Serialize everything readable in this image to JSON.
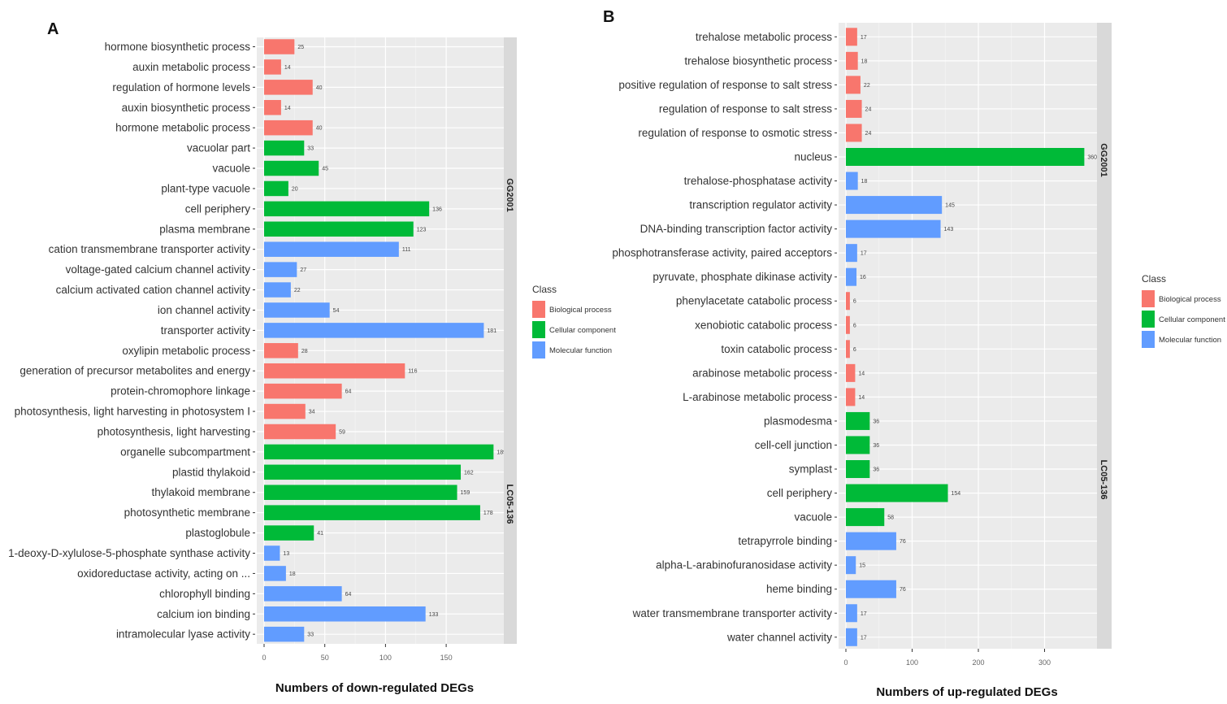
{
  "chart_data": [
    {
      "panel": "A",
      "type": "bar",
      "orientation": "horizontal",
      "xlabel": "Numbers of down-regulated DEGs",
      "xticks": [
        0,
        50,
        100,
        150
      ],
      "xlim": [
        0,
        195
      ],
      "legend_title": "Class",
      "legend": [
        {
          "name": "Biological process",
          "color": "#f8766d"
        },
        {
          "name": "Cellular component",
          "color": "#00ba38"
        },
        {
          "name": "Molecular function",
          "color": "#619cff"
        }
      ],
      "facets": [
        {
          "label": "GG2001",
          "bars": [
            {
              "label": "hormone biosynthetic process",
              "value": 25,
              "class": "Biological process"
            },
            {
              "label": "auxin metabolic process",
              "value": 14,
              "class": "Biological process"
            },
            {
              "label": "regulation of hormone levels",
              "value": 40,
              "class": "Biological process"
            },
            {
              "label": "auxin biosynthetic process",
              "value": 14,
              "class": "Biological process"
            },
            {
              "label": "hormone metabolic process",
              "value": 40,
              "class": "Biological process"
            },
            {
              "label": "vacuolar part",
              "value": 33,
              "class": "Cellular component"
            },
            {
              "label": "vacuole",
              "value": 45,
              "class": "Cellular component"
            },
            {
              "label": "plant-type vacuole",
              "value": 20,
              "class": "Cellular component"
            },
            {
              "label": "cell periphery",
              "value": 136,
              "class": "Cellular component"
            },
            {
              "label": "plasma membrane",
              "value": 123,
              "class": "Cellular component"
            },
            {
              "label": "cation transmembrane transporter activity",
              "value": 111,
              "class": "Molecular function"
            },
            {
              "label": "voltage-gated calcium channel activity",
              "value": 27,
              "class": "Molecular function"
            },
            {
              "label": "calcium activated cation channel activity",
              "value": 22,
              "class": "Molecular function"
            },
            {
              "label": "ion channel activity",
              "value": 54,
              "class": "Molecular function"
            },
            {
              "label": "transporter activity",
              "value": 181,
              "class": "Molecular function"
            }
          ]
        },
        {
          "label": "LC05-136",
          "bars": [
            {
              "label": "oxylipin metabolic process",
              "value": 28,
              "class": "Biological process"
            },
            {
              "label": "generation of precursor metabolites and energy",
              "value": 116,
              "class": "Biological process"
            },
            {
              "label": "protein-chromophore linkage",
              "value": 64,
              "class": "Biological process"
            },
            {
              "label": "photosynthesis, light harvesting in photosystem I",
              "value": 34,
              "class": "Biological process"
            },
            {
              "label": "photosynthesis, light harvesting",
              "value": 59,
              "class": "Biological process"
            },
            {
              "label": "organelle subcompartment",
              "value": 189,
              "class": "Cellular component"
            },
            {
              "label": "plastid thylakoid",
              "value": 162,
              "class": "Cellular component"
            },
            {
              "label": "thylakoid membrane",
              "value": 159,
              "class": "Cellular component"
            },
            {
              "label": "photosynthetic membrane",
              "value": 178,
              "class": "Cellular component"
            },
            {
              "label": "plastoglobule",
              "value": 41,
              "class": "Cellular component"
            },
            {
              "label": "1-deoxy-D-xylulose-5-phosphate synthase activity",
              "value": 13,
              "class": "Molecular function"
            },
            {
              "label": "oxidoreductase activity, acting on ...",
              "value": 18,
              "class": "Molecular function"
            },
            {
              "label": "chlorophyll binding",
              "value": 64,
              "class": "Molecular function"
            },
            {
              "label": "calcium ion binding",
              "value": 133,
              "class": "Molecular function"
            },
            {
              "label": "intramolecular lyase activity",
              "value": 33,
              "class": "Molecular function"
            }
          ]
        }
      ]
    },
    {
      "panel": "B",
      "type": "bar",
      "orientation": "horizontal",
      "xlabel": "Numbers of up-regulated DEGs",
      "xticks": [
        0,
        100,
        200,
        300
      ],
      "xlim": [
        0,
        376
      ],
      "legend_title": "Class",
      "legend": [
        {
          "name": "Biological process",
          "color": "#f8766d"
        },
        {
          "name": "Cellular component",
          "color": "#00ba38"
        },
        {
          "name": "Molecular function",
          "color": "#619cff"
        }
      ],
      "facets": [
        {
          "label": "GG2001",
          "bars": [
            {
              "label": "trehalose metabolic process",
              "value": 17,
              "class": "Biological process"
            },
            {
              "label": "trehalose biosynthetic process",
              "value": 18,
              "class": "Biological process"
            },
            {
              "label": "positive regulation of response to salt stress",
              "value": 22,
              "class": "Biological process"
            },
            {
              "label": "regulation of response to salt stress",
              "value": 24,
              "class": "Biological process"
            },
            {
              "label": "regulation of response to osmotic stress",
              "value": 24,
              "class": "Biological process"
            },
            {
              "label": "nucleus",
              "value": 360,
              "class": "Cellular component"
            },
            {
              "label": "trehalose-phosphatase activity",
              "value": 18,
              "class": "Molecular function"
            },
            {
              "label": "transcription regulator activity",
              "value": 145,
              "class": "Molecular function"
            },
            {
              "label": "DNA-binding transcription factor activity",
              "value": 143,
              "class": "Molecular function"
            },
            {
              "label": "phosphotransferase activity, paired acceptors",
              "value": 17,
              "class": "Molecular function"
            },
            {
              "label": "pyruvate, phosphate dikinase activity",
              "value": 16,
              "class": "Molecular function"
            }
          ]
        },
        {
          "label": "LC05-136",
          "bars": [
            {
              "label": "phenylacetate catabolic process",
              "value": 6,
              "class": "Biological process"
            },
            {
              "label": "xenobiotic catabolic process",
              "value": 6,
              "class": "Biological process"
            },
            {
              "label": "toxin catabolic process",
              "value": 6,
              "class": "Biological process"
            },
            {
              "label": "arabinose metabolic process",
              "value": 14,
              "class": "Biological process"
            },
            {
              "label": "L-arabinose metabolic process",
              "value": 14,
              "class": "Biological process"
            },
            {
              "label": "plasmodesma",
              "value": 36,
              "class": "Cellular component"
            },
            {
              "label": "cell-cell junction",
              "value": 36,
              "class": "Cellular component"
            },
            {
              "label": "symplast",
              "value": 36,
              "class": "Cellular component"
            },
            {
              "label": "cell periphery",
              "value": 154,
              "class": "Cellular component"
            },
            {
              "label": "vacuole",
              "value": 58,
              "class": "Cellular component"
            },
            {
              "label": "tetrapyrrole binding",
              "value": 76,
              "class": "Molecular function"
            },
            {
              "label": "alpha-L-arabinofuranosidase activity",
              "value": 15,
              "class": "Molecular function"
            },
            {
              "label": "heme binding",
              "value": 76,
              "class": "Molecular function"
            },
            {
              "label": "water transmembrane transporter activity",
              "value": 17,
              "class": "Molecular function"
            },
            {
              "label": "water channel activity",
              "value": 17,
              "class": "Molecular function"
            }
          ]
        }
      ]
    }
  ]
}
